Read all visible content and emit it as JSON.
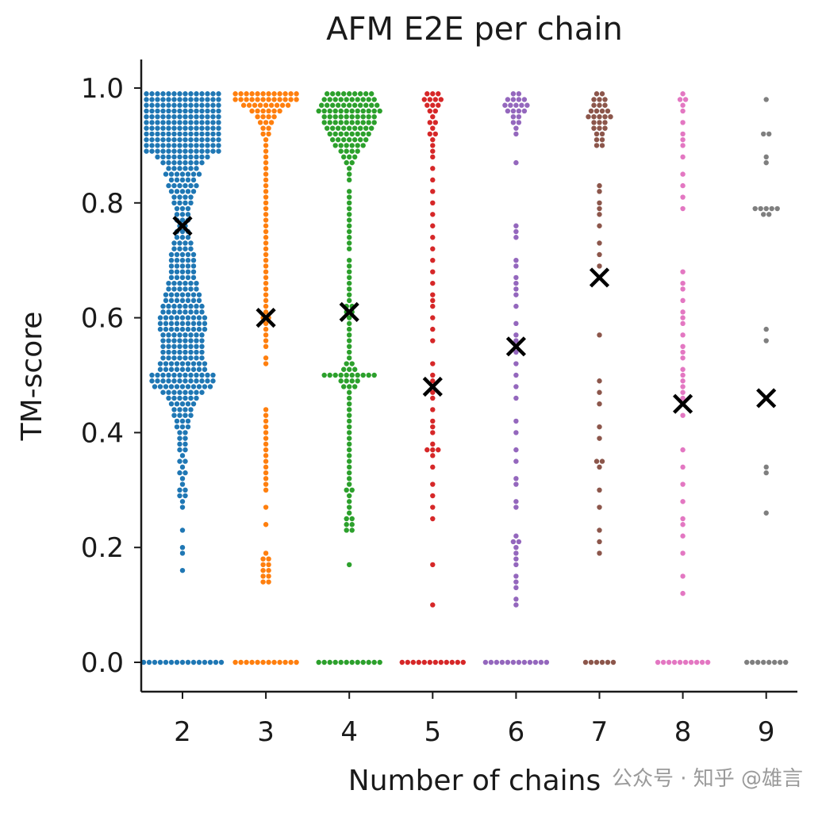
{
  "chart_data": {
    "type": "scatter",
    "subtype": "swarm",
    "title": "AFM E2E per chain",
    "xlabel": "Number of chains",
    "ylabel": "TM-score",
    "ylim": [
      0.0,
      1.0
    ],
    "yticks": [
      "0.0",
      "0.2",
      "0.4",
      "0.6",
      "0.8",
      "1.0"
    ],
    "categories": [
      "2",
      "3",
      "4",
      "5",
      "6",
      "7",
      "8",
      "9"
    ],
    "grid": false,
    "mean_marker": "x",
    "series": [
      {
        "name": "2",
        "color": "#1f77b4",
        "mean": 0.76,
        "zero_count": 15,
        "values": [
          0.99,
          0.99,
          0.99,
          0.99,
          0.99,
          0.99,
          0.99,
          0.99,
          0.99,
          0.99,
          0.99,
          0.99,
          0.99,
          0.99,
          0.98,
          0.98,
          0.98,
          0.98,
          0.98,
          0.98,
          0.98,
          0.98,
          0.98,
          0.98,
          0.98,
          0.98,
          0.98,
          0.98,
          0.97,
          0.97,
          0.97,
          0.97,
          0.97,
          0.97,
          0.97,
          0.97,
          0.97,
          0.97,
          0.97,
          0.97,
          0.97,
          0.97,
          0.96,
          0.96,
          0.96,
          0.96,
          0.96,
          0.96,
          0.96,
          0.96,
          0.96,
          0.96,
          0.96,
          0.96,
          0.96,
          0.96,
          0.95,
          0.95,
          0.95,
          0.95,
          0.95,
          0.95,
          0.95,
          0.95,
          0.95,
          0.95,
          0.95,
          0.95,
          0.95,
          0.95,
          0.94,
          0.94,
          0.94,
          0.94,
          0.94,
          0.94,
          0.94,
          0.94,
          0.94,
          0.94,
          0.94,
          0.94,
          0.94,
          0.94,
          0.93,
          0.93,
          0.93,
          0.93,
          0.93,
          0.93,
          0.93,
          0.93,
          0.93,
          0.93,
          0.93,
          0.93,
          0.93,
          0.93,
          0.92,
          0.92,
          0.92,
          0.92,
          0.92,
          0.92,
          0.92,
          0.92,
          0.92,
          0.92,
          0.92,
          0.92,
          0.92,
          0.92,
          0.91,
          0.91,
          0.91,
          0.91,
          0.91,
          0.91,
          0.91,
          0.91,
          0.91,
          0.91,
          0.91,
          0.91,
          0.91,
          0.91,
          0.9,
          0.9,
          0.9,
          0.9,
          0.9,
          0.9,
          0.9,
          0.9,
          0.9,
          0.9,
          0.9,
          0.9,
          0.9,
          0.9,
          0.89,
          0.89,
          0.89,
          0.89,
          0.89,
          0.89,
          0.89,
          0.89,
          0.89,
          0.89,
          0.89,
          0.89,
          0.89,
          0.89,
          0.88,
          0.88,
          0.88,
          0.88,
          0.88,
          0.88,
          0.88,
          0.88,
          0.88,
          0.88,
          0.87,
          0.87,
          0.87,
          0.87,
          0.87,
          0.87,
          0.87,
          0.87,
          0.86,
          0.86,
          0.86,
          0.86,
          0.86,
          0.86,
          0.85,
          0.85,
          0.85,
          0.85,
          0.85,
          0.85,
          0.85,
          0.84,
          0.84,
          0.84,
          0.84,
          0.84,
          0.83,
          0.83,
          0.83,
          0.83,
          0.83,
          0.83,
          0.82,
          0.82,
          0.82,
          0.82,
          0.82,
          0.81,
          0.81,
          0.81,
          0.81,
          0.8,
          0.8,
          0.8,
          0.8,
          0.79,
          0.79,
          0.79,
          0.78,
          0.78,
          0.78,
          0.77,
          0.77,
          0.77,
          0.76,
          0.76,
          0.75,
          0.75,
          0.75,
          0.74,
          0.74,
          0.74,
          0.73,
          0.73,
          0.73,
          0.73,
          0.72,
          0.72,
          0.72,
          0.72,
          0.71,
          0.71,
          0.71,
          0.71,
          0.71,
          0.7,
          0.7,
          0.7,
          0.7,
          0.7,
          0.69,
          0.69,
          0.69,
          0.69,
          0.69,
          0.68,
          0.68,
          0.68,
          0.68,
          0.68,
          0.67,
          0.67,
          0.67,
          0.67,
          0.67,
          0.66,
          0.66,
          0.66,
          0.66,
          0.66,
          0.66,
          0.65,
          0.65,
          0.65,
          0.65,
          0.65,
          0.65,
          0.64,
          0.64,
          0.64,
          0.64,
          0.64,
          0.64,
          0.64,
          0.63,
          0.63,
          0.63,
          0.63,
          0.63,
          0.63,
          0.63,
          0.62,
          0.62,
          0.62,
          0.62,
          0.62,
          0.62,
          0.62,
          0.62,
          0.61,
          0.61,
          0.61,
          0.61,
          0.61,
          0.61,
          0.61,
          0.61,
          0.6,
          0.6,
          0.6,
          0.6,
          0.6,
          0.6,
          0.6,
          0.6,
          0.6,
          0.59,
          0.59,
          0.59,
          0.59,
          0.59,
          0.59,
          0.59,
          0.59,
          0.59,
          0.58,
          0.58,
          0.58,
          0.58,
          0.58,
          0.58,
          0.58,
          0.58,
          0.58,
          0.57,
          0.57,
          0.57,
          0.57,
          0.57,
          0.57,
          0.57,
          0.57,
          0.56,
          0.56,
          0.56,
          0.56,
          0.56,
          0.56,
          0.56,
          0.56,
          0.55,
          0.55,
          0.55,
          0.55,
          0.55,
          0.55,
          0.55,
          0.55,
          0.54,
          0.54,
          0.54,
          0.54,
          0.54,
          0.54,
          0.54,
          0.54,
          0.53,
          0.53,
          0.53,
          0.53,
          0.53,
          0.53,
          0.53,
          0.53,
          0.52,
          0.52,
          0.52,
          0.52,
          0.52,
          0.52,
          0.52,
          0.52,
          0.52,
          0.51,
          0.51,
          0.51,
          0.51,
          0.51,
          0.51,
          0.51,
          0.51,
          0.51,
          0.5,
          0.5,
          0.5,
          0.5,
          0.5,
          0.5,
          0.5,
          0.5,
          0.5,
          0.5,
          0.5,
          0.5,
          0.49,
          0.49,
          0.49,
          0.49,
          0.49,
          0.49,
          0.49,
          0.49,
          0.49,
          0.49,
          0.49,
          0.49,
          0.48,
          0.48,
          0.48,
          0.48,
          0.48,
          0.48,
          0.48,
          0.48,
          0.48,
          0.48,
          0.48,
          0.47,
          0.47,
          0.47,
          0.47,
          0.47,
          0.47,
          0.47,
          0.47,
          0.46,
          0.46,
          0.46,
          0.46,
          0.46,
          0.46,
          0.45,
          0.45,
          0.45,
          0.45,
          0.45,
          0.44,
          0.44,
          0.44,
          0.44,
          0.43,
          0.43,
          0.43,
          0.43,
          0.42,
          0.42,
          0.42,
          0.41,
          0.41,
          0.41,
          0.4,
          0.4,
          0.39,
          0.39,
          0.38,
          0.38,
          0.37,
          0.37,
          0.36,
          0.35,
          0.35,
          0.34,
          0.33,
          0.33,
          0.32,
          0.31,
          0.3,
          0.3,
          0.29,
          0.29,
          0.28,
          0.27,
          0.23,
          0.2,
          0.19,
          0.16
        ]
      },
      {
        "name": "3",
        "color": "#ff7f0e",
        "mean": 0.6,
        "zero_count": 12,
        "values": [
          0.99,
          0.99,
          0.99,
          0.99,
          0.99,
          0.99,
          0.99,
          0.99,
          0.99,
          0.99,
          0.99,
          0.99,
          0.98,
          0.98,
          0.98,
          0.98,
          0.98,
          0.98,
          0.98,
          0.98,
          0.98,
          0.98,
          0.98,
          0.98,
          0.97,
          0.97,
          0.97,
          0.97,
          0.97,
          0.97,
          0.97,
          0.97,
          0.97,
          0.96,
          0.96,
          0.96,
          0.96,
          0.96,
          0.96,
          0.95,
          0.95,
          0.95,
          0.95,
          0.94,
          0.94,
          0.94,
          0.93,
          0.93,
          0.92,
          0.92,
          0.91,
          0.9,
          0.89,
          0.88,
          0.87,
          0.86,
          0.85,
          0.84,
          0.83,
          0.82,
          0.81,
          0.8,
          0.79,
          0.78,
          0.77,
          0.76,
          0.75,
          0.74,
          0.73,
          0.72,
          0.71,
          0.7,
          0.69,
          0.68,
          0.67,
          0.66,
          0.65,
          0.64,
          0.63,
          0.62,
          0.61,
          0.6,
          0.6,
          0.59,
          0.58,
          0.57,
          0.56,
          0.55,
          0.53,
          0.52,
          0.44,
          0.43,
          0.42,
          0.41,
          0.4,
          0.39,
          0.38,
          0.37,
          0.36,
          0.35,
          0.34,
          0.33,
          0.32,
          0.31,
          0.3,
          0.27,
          0.24,
          0.19,
          0.18,
          0.18,
          0.17,
          0.17,
          0.16,
          0.16,
          0.15,
          0.15,
          0.14,
          0.14
        ]
      },
      {
        "name": "4",
        "color": "#2ca02c",
        "mean": 0.61,
        "zero_count": 12,
        "values": [
          0.99,
          0.99,
          0.99,
          0.99,
          0.99,
          0.99,
          0.99,
          0.99,
          0.99,
          0.98,
          0.98,
          0.98,
          0.98,
          0.98,
          0.98,
          0.98,
          0.98,
          0.98,
          0.98,
          0.97,
          0.97,
          0.97,
          0.97,
          0.97,
          0.97,
          0.97,
          0.97,
          0.97,
          0.97,
          0.97,
          0.96,
          0.96,
          0.96,
          0.96,
          0.96,
          0.96,
          0.96,
          0.96,
          0.96,
          0.96,
          0.96,
          0.96,
          0.95,
          0.95,
          0.95,
          0.95,
          0.95,
          0.95,
          0.95,
          0.95,
          0.95,
          0.95,
          0.94,
          0.94,
          0.94,
          0.94,
          0.94,
          0.94,
          0.94,
          0.94,
          0.94,
          0.94,
          0.93,
          0.93,
          0.93,
          0.93,
          0.93,
          0.93,
          0.93,
          0.93,
          0.93,
          0.92,
          0.92,
          0.92,
          0.92,
          0.92,
          0.92,
          0.92,
          0.92,
          0.91,
          0.91,
          0.91,
          0.91,
          0.91,
          0.91,
          0.91,
          0.9,
          0.9,
          0.9,
          0.9,
          0.9,
          0.9,
          0.89,
          0.89,
          0.89,
          0.89,
          0.88,
          0.88,
          0.88,
          0.87,
          0.87,
          0.86,
          0.85,
          0.84,
          0.82,
          0.81,
          0.8,
          0.79,
          0.78,
          0.77,
          0.76,
          0.75,
          0.74,
          0.73,
          0.72,
          0.7,
          0.69,
          0.68,
          0.67,
          0.66,
          0.65,
          0.64,
          0.63,
          0.62,
          0.62,
          0.61,
          0.61,
          0.6,
          0.59,
          0.58,
          0.57,
          0.56,
          0.55,
          0.54,
          0.53,
          0.52,
          0.52,
          0.51,
          0.51,
          0.51,
          0.5,
          0.5,
          0.5,
          0.5,
          0.5,
          0.5,
          0.5,
          0.5,
          0.5,
          0.5,
          0.49,
          0.49,
          0.49,
          0.49,
          0.48,
          0.48,
          0.48,
          0.47,
          0.46,
          0.45,
          0.44,
          0.43,
          0.42,
          0.41,
          0.4,
          0.39,
          0.38,
          0.37,
          0.36,
          0.35,
          0.34,
          0.33,
          0.32,
          0.31,
          0.3,
          0.3,
          0.29,
          0.28,
          0.27,
          0.26,
          0.25,
          0.25,
          0.24,
          0.24,
          0.23,
          0.23,
          0.17
        ]
      },
      {
        "name": "5",
        "color": "#d62728",
        "mean": 0.48,
        "zero_count": 12,
        "values": [
          0.99,
          0.99,
          0.99,
          0.98,
          0.98,
          0.98,
          0.98,
          0.97,
          0.97,
          0.97,
          0.96,
          0.96,
          0.95,
          0.94,
          0.94,
          0.93,
          0.92,
          0.92,
          0.91,
          0.9,
          0.89,
          0.88,
          0.86,
          0.84,
          0.82,
          0.8,
          0.78,
          0.76,
          0.74,
          0.72,
          0.7,
          0.68,
          0.66,
          0.64,
          0.63,
          0.62,
          0.6,
          0.58,
          0.56,
          0.52,
          0.5,
          0.49,
          0.48,
          0.47,
          0.46,
          0.44,
          0.42,
          0.41,
          0.4,
          0.38,
          0.37,
          0.37,
          0.37,
          0.36,
          0.34,
          0.31,
          0.29,
          0.27,
          0.25,
          0.17,
          0.1
        ]
      },
      {
        "name": "6",
        "color": "#9467bd",
        "mean": 0.55,
        "zero_count": 12,
        "values": [
          0.99,
          0.99,
          0.98,
          0.98,
          0.98,
          0.98,
          0.97,
          0.97,
          0.97,
          0.97,
          0.97,
          0.96,
          0.96,
          0.96,
          0.96,
          0.95,
          0.95,
          0.94,
          0.94,
          0.93,
          0.92,
          0.87,
          0.76,
          0.75,
          0.74,
          0.7,
          0.69,
          0.67,
          0.66,
          0.65,
          0.64,
          0.62,
          0.59,
          0.57,
          0.56,
          0.55,
          0.54,
          0.52,
          0.5,
          0.48,
          0.46,
          0.42,
          0.4,
          0.37,
          0.35,
          0.32,
          0.31,
          0.28,
          0.27,
          0.22,
          0.21,
          0.21,
          0.2,
          0.19,
          0.18,
          0.17,
          0.15,
          0.14,
          0.13,
          0.11,
          0.1
        ]
      },
      {
        "name": "7",
        "color": "#8c564b",
        "mean": 0.67,
        "zero_count": 6,
        "values": [
          0.99,
          0.99,
          0.98,
          0.98,
          0.98,
          0.97,
          0.97,
          0.97,
          0.96,
          0.96,
          0.96,
          0.96,
          0.95,
          0.95,
          0.95,
          0.95,
          0.95,
          0.94,
          0.94,
          0.94,
          0.93,
          0.93,
          0.93,
          0.92,
          0.92,
          0.91,
          0.91,
          0.9,
          0.9,
          0.83,
          0.82,
          0.8,
          0.79,
          0.78,
          0.76,
          0.73,
          0.71,
          0.69,
          0.57,
          0.49,
          0.47,
          0.45,
          0.41,
          0.39,
          0.35,
          0.35,
          0.34,
          0.3,
          0.27,
          0.23,
          0.21,
          0.19
        ]
      },
      {
        "name": "8",
        "color": "#e377c2",
        "mean": 0.45,
        "zero_count": 10,
        "values": [
          0.99,
          0.98,
          0.98,
          0.97,
          0.96,
          0.94,
          0.92,
          0.91,
          0.9,
          0.88,
          0.85,
          0.83,
          0.81,
          0.79,
          0.68,
          0.66,
          0.65,
          0.63,
          0.61,
          0.6,
          0.59,
          0.57,
          0.55,
          0.54,
          0.53,
          0.51,
          0.5,
          0.49,
          0.48,
          0.47,
          0.46,
          0.43,
          0.37,
          0.34,
          0.31,
          0.28,
          0.25,
          0.24,
          0.22,
          0.19,
          0.15,
          0.12
        ]
      },
      {
        "name": "9",
        "color": "#7f7f7f",
        "mean": 0.46,
        "zero_count": 8,
        "values": [
          0.98,
          0.92,
          0.92,
          0.88,
          0.87,
          0.79,
          0.79,
          0.79,
          0.79,
          0.79,
          0.78,
          0.78,
          0.58,
          0.56,
          0.34,
          0.33,
          0.26
        ]
      }
    ]
  },
  "watermark": "公众号 · 知乎 @雄言"
}
